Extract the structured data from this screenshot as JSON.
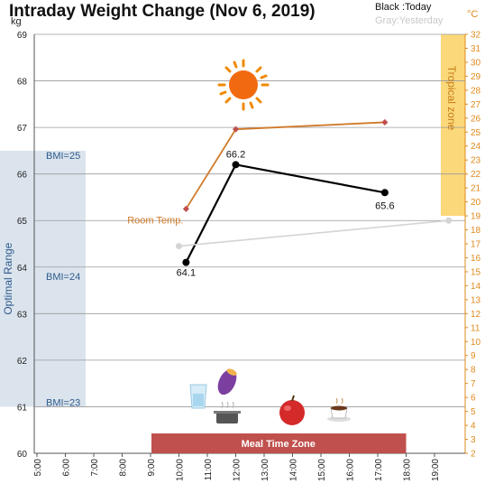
{
  "chart_data": {
    "type": "line",
    "title": "Intraday Weight Change (Nov 6, 2019)",
    "legend": {
      "today": "Black :Today",
      "yesterday": "Gray:Yesterday",
      "placement": "top-right"
    },
    "y_left": {
      "unit": "kg",
      "range": [
        60,
        69
      ],
      "ticks": [
        "60",
        "61",
        "62",
        "63",
        "64",
        "65",
        "66",
        "67",
        "68",
        "69"
      ]
    },
    "y_right": {
      "unit": "°C",
      "range": [
        2,
        32
      ],
      "ticks": [
        "2",
        "3",
        "4",
        "5",
        "6",
        "7",
        "8",
        "9",
        "10",
        "11",
        "12",
        "13",
        "14",
        "15",
        "16",
        "17",
        "18",
        "19",
        "20",
        "21",
        "22",
        "23",
        "24",
        "25",
        "26",
        "27",
        "28",
        "29",
        "30",
        "31",
        "32"
      ]
    },
    "x": {
      "range": [
        5,
        20
      ],
      "ticks": [
        "5:00",
        "6:00",
        "7:00",
        "8:00",
        "9:00",
        "10:00",
        "11:00",
        "12:00",
        "13:00",
        "14:00",
        "15:00",
        "16:00",
        "17:00",
        "18:00",
        "19:00"
      ],
      "tick_values": [
        5,
        6,
        7,
        8,
        9,
        10,
        11,
        12,
        13,
        14,
        15,
        16,
        17,
        18,
        19
      ]
    },
    "grid": true,
    "series": [
      {
        "name": "Today",
        "axis": "left",
        "color": "#000000",
        "points": [
          {
            "x": 10.25,
            "y": 64.1,
            "label": "64.1"
          },
          {
            "x": 12.0,
            "y": 66.2,
            "label": "66.2"
          },
          {
            "x": 17.25,
            "y": 65.6,
            "label": "65.6"
          }
        ]
      },
      {
        "name": "Yesterday",
        "axis": "left",
        "color": "#d4d4d4",
        "points": [
          {
            "x": 10.0,
            "y": 64.45
          },
          {
            "x": 19.5,
            "y": 65.0
          }
        ]
      },
      {
        "name": "Room Temp.",
        "axis": "right",
        "color": "#d07a2a",
        "marker_color": "#c0504d",
        "points": [
          {
            "x": 10.25,
            "y": 19.5
          },
          {
            "x": 12.0,
            "y": 25.2
          },
          {
            "x": 17.25,
            "y": 25.7
          }
        ]
      }
    ],
    "annotations": {
      "room_temp_label": "Room Temp.",
      "optimal_range": {
        "label": "Optimal Range",
        "kg_range": [
          61,
          66.5
        ],
        "color": "#dbe4ec"
      },
      "bmi_lines": [
        {
          "label": "BMI=25",
          "y": 66.4
        },
        {
          "label": "BMI=24",
          "y": 63.8
        },
        {
          "label": "BMI=23",
          "y": 61.1
        }
      ],
      "tropical_zone": {
        "label": "Tropical zone",
        "temp_range": [
          19,
          32
        ],
        "color": "#fbd87a"
      },
      "meal_zone": {
        "label": "Meal Time Zone",
        "x_range": [
          9,
          18
        ],
        "color": "#c0504d"
      },
      "icons": [
        "sun-icon",
        "water-glass-icon",
        "sweet-potato-icon",
        "cooking-pot-icon",
        "apple-icon",
        "coffee-cup-icon"
      ]
    }
  }
}
